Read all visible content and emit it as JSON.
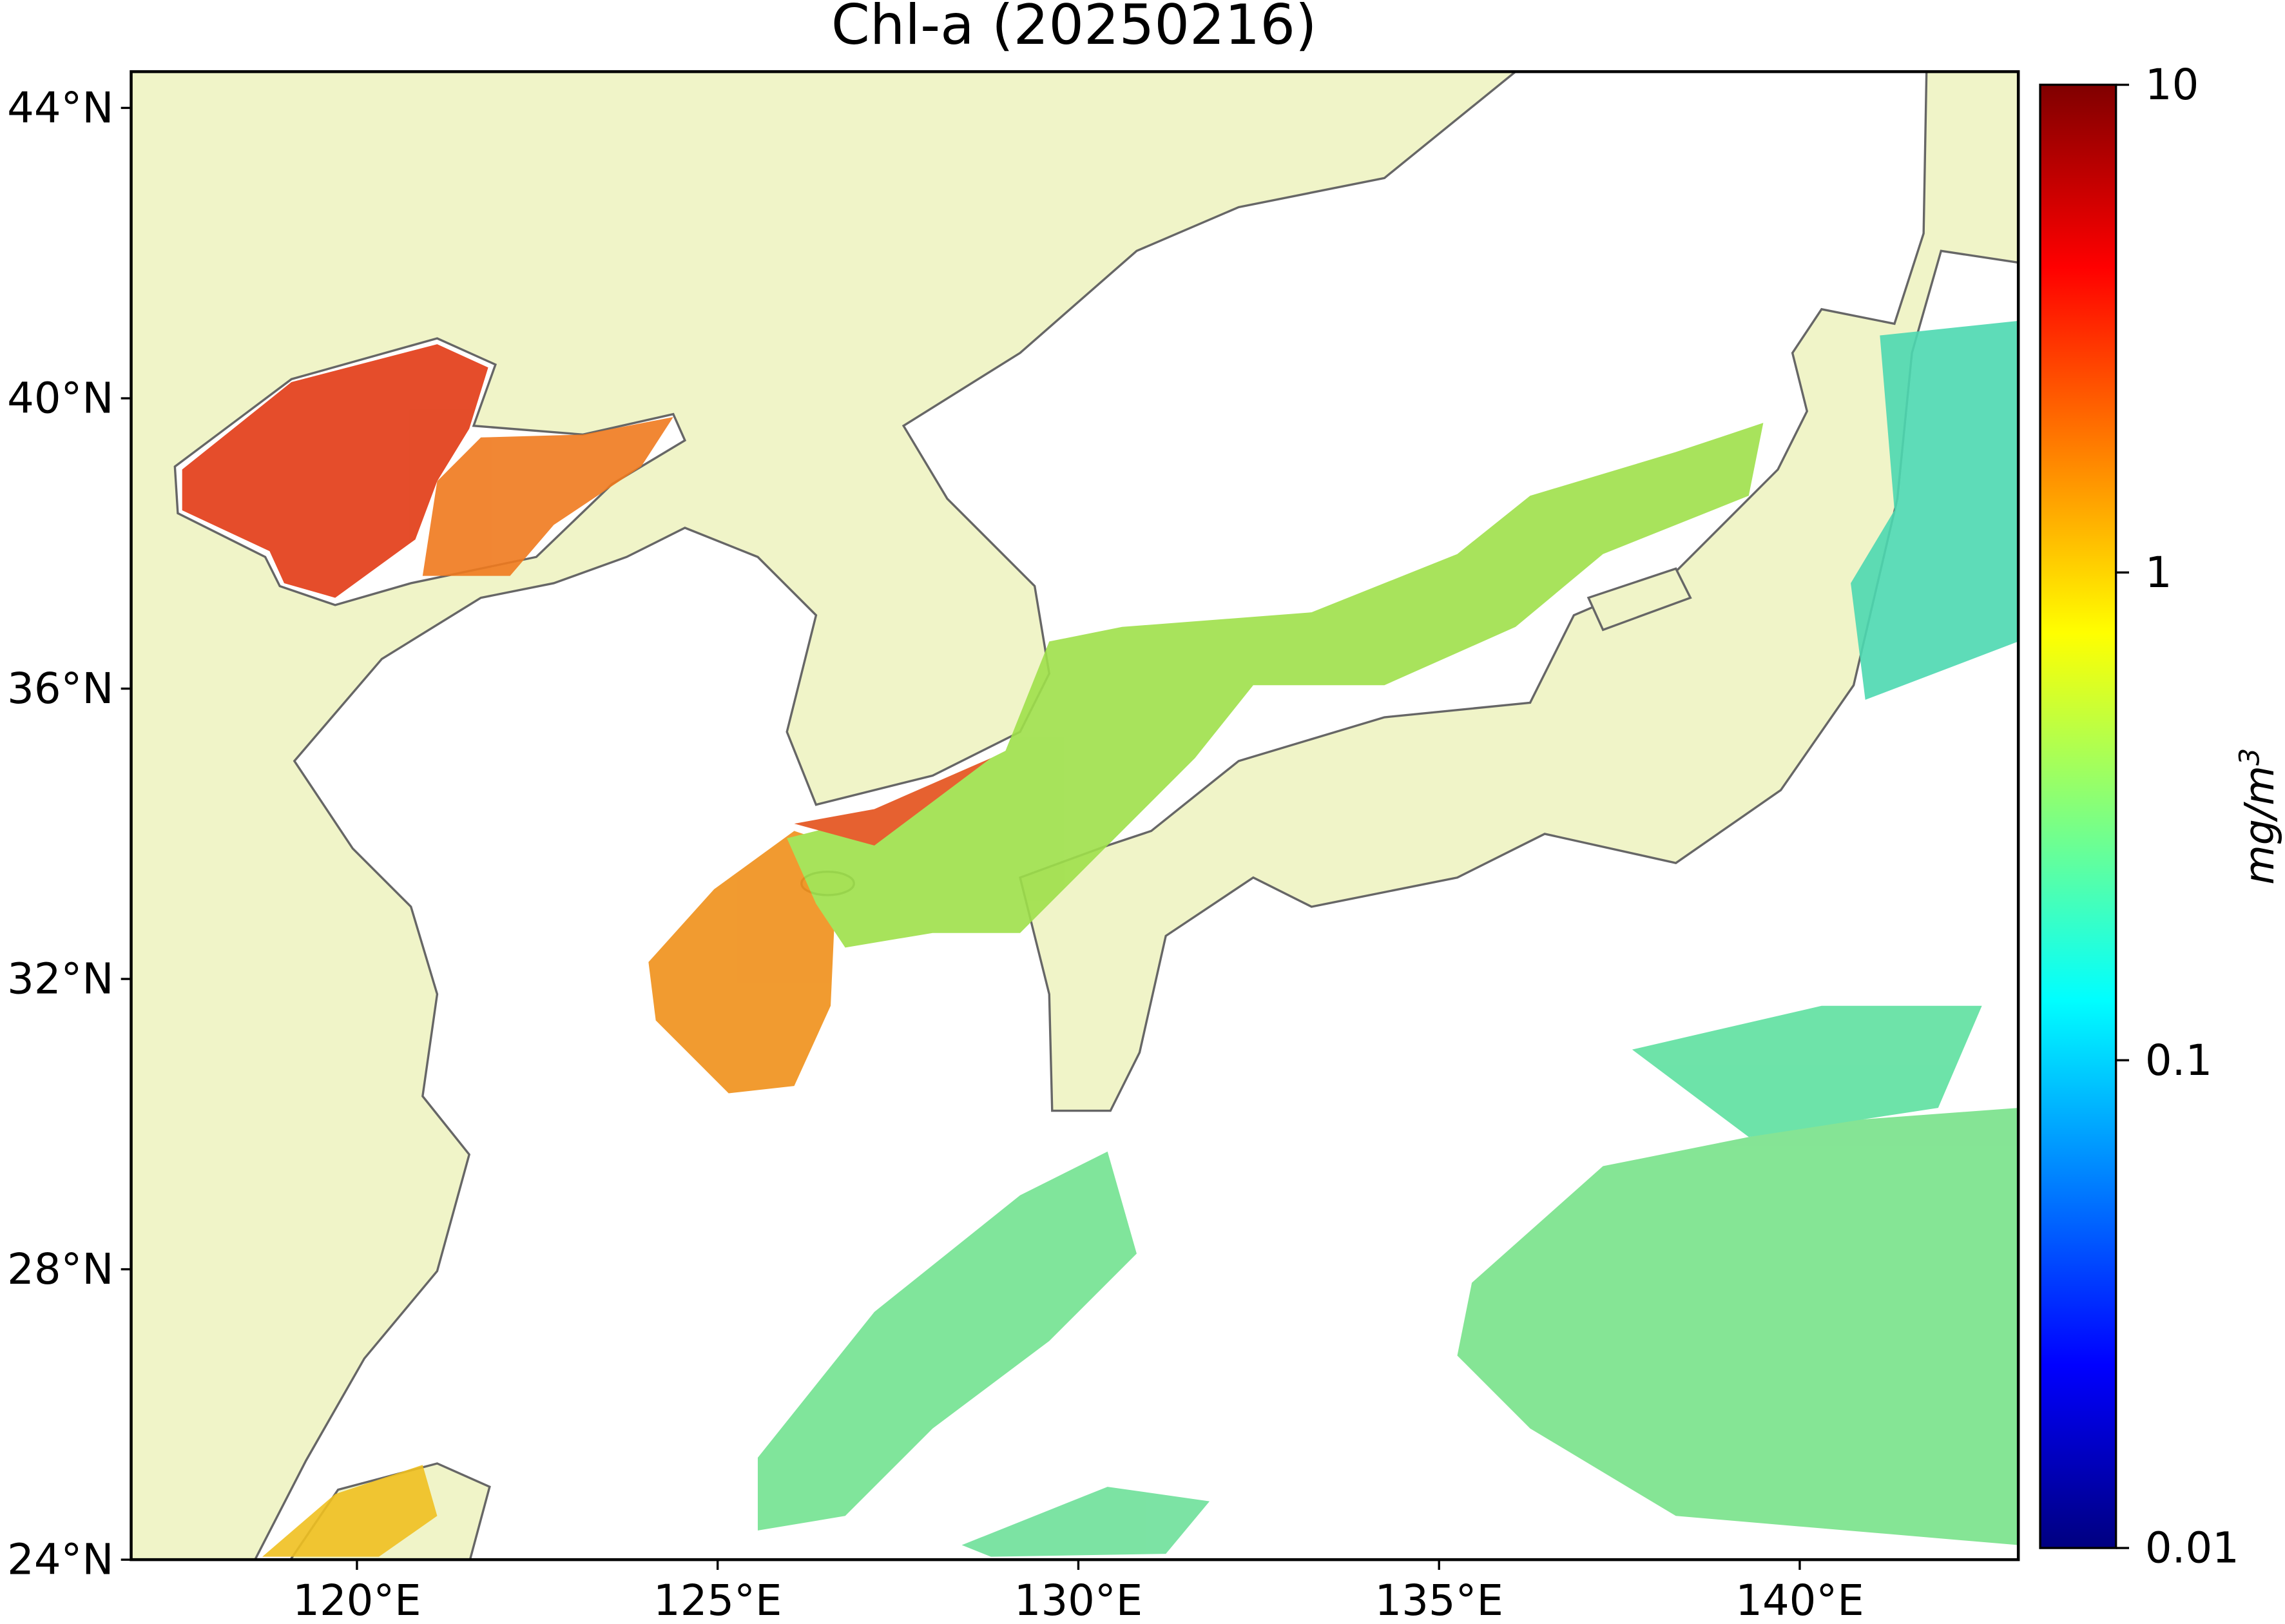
{
  "chart_data": {
    "type": "map",
    "title": "Chl-a (20250216)",
    "xlim": [
      116.87,
      143.03
    ],
    "ylim": [
      24,
      44.5
    ],
    "xticks": [
      {
        "value": 120,
        "label": "120°E"
      },
      {
        "value": 125,
        "label": "125°E"
      },
      {
        "value": 130,
        "label": "130°E"
      },
      {
        "value": 135,
        "label": "135°E"
      },
      {
        "value": 140,
        "label": "140°E"
      }
    ],
    "yticks": [
      {
        "value": 24,
        "label": "24°N"
      },
      {
        "value": 28,
        "label": "28°N"
      },
      {
        "value": 32,
        "label": "32°N"
      },
      {
        "value": 36,
        "label": "36°N"
      },
      {
        "value": 40,
        "label": "40°N"
      },
      {
        "value": 44,
        "label": "44°N"
      }
    ],
    "colorbar": {
      "scale": "log",
      "colormap": "jet",
      "lim": [
        0.01,
        10
      ],
      "ticks": [
        0.01,
        0.1,
        1,
        10
      ],
      "label": {
        "base": "mg/m",
        "superscript": "3"
      }
    }
  }
}
